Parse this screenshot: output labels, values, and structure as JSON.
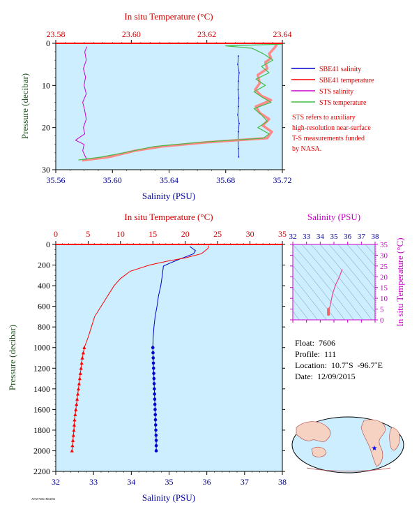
{
  "colors": {
    "salinity_blue": "#0000cc",
    "temperature_red": "#ff0000",
    "sts_salinity": "#cc00cc",
    "sts_temperature": "#44bb44",
    "axis_red": "#cc0000",
    "axis_blue": "#000099",
    "axis_green": "#225522",
    "axis_magenta": "#cc00cc",
    "plot_bg": "#cceeff"
  },
  "legend": {
    "items": [
      {
        "label": "SBE41 salinity",
        "color": "#0000cc"
      },
      {
        "label": "SBE41 temperature",
        "color": "#ff0000"
      },
      {
        "label": "STS salinity",
        "color": "#cc00cc"
      },
      {
        "label": "STS temperature",
        "color": "#44bb44"
      }
    ]
  },
  "note_lines": [
    "STS refers to auxiliary",
    "high-resolution near-surface",
    "T-S measurements funded",
    "by NASA."
  ],
  "float_info": {
    "float": "Float:  7606",
    "profile": "Profile:  111",
    "location": "Location:  10.7˚S  -96.7˚E",
    "date": "Date:  12/09/2015"
  },
  "footer_tiny": "AWW7606.IMS4094",
  "chart_data": [
    {
      "id": "near-surface",
      "type": "line",
      "top_axis_label": "In situ Temperature (°C)",
      "top_ticks": [
        "23.58",
        "23.60",
        "23.62",
        "23.64"
      ],
      "top_lim": [
        23.58,
        23.64
      ],
      "bottom_axis_label": "Salinity (PSU)",
      "bottom_ticks": [
        "35.56",
        "35.60",
        "35.64",
        "35.68",
        "35.72"
      ],
      "bottom_lim": [
        35.56,
        35.72
      ],
      "ylabel": "Pressure (decibar)",
      "y_ticks": [
        "0",
        "10",
        "20",
        "30"
      ],
      "ylim": [
        0,
        30
      ],
      "series": [
        {
          "name": "SBE41 salinity",
          "axis": "bottom",
          "points": [
            [
              35.689,
              3
            ],
            [
              35.6885,
              5
            ],
            [
              35.6895,
              7
            ],
            [
              35.689,
              9
            ],
            [
              35.6888,
              11
            ],
            [
              35.6892,
              13
            ],
            [
              35.689,
              15
            ],
            [
              35.6885,
              17
            ],
            [
              35.6895,
              19
            ],
            [
              35.689,
              21
            ],
            [
              35.6888,
              23
            ],
            [
              35.689,
              25
            ],
            [
              35.6892,
              27
            ]
          ]
        },
        {
          "name": "SBE41 temperature",
          "axis": "top",
          "points": [
            [
              23.6385,
              0.3
            ],
            [
              23.638,
              1.0
            ],
            [
              23.6365,
              2.5
            ],
            [
              23.637,
              3.5
            ],
            [
              23.6355,
              4.5
            ],
            [
              23.636,
              6.0
            ],
            [
              23.6335,
              7.5
            ],
            [
              23.634,
              9.5
            ],
            [
              23.6328,
              11.0
            ],
            [
              23.6345,
              12.5
            ],
            [
              23.637,
              13.5
            ],
            [
              23.633,
              15.0
            ],
            [
              23.634,
              16.5
            ],
            [
              23.6365,
              18.0
            ],
            [
              23.6348,
              19.5
            ],
            [
              23.6372,
              21.0
            ],
            [
              23.636,
              22.5
            ],
            [
              23.62,
              23.5
            ],
            [
              23.608,
              24.5
            ],
            [
              23.601,
              25.5
            ],
            [
              23.594,
              27.0
            ],
            [
              23.587,
              27.8
            ]
          ]
        },
        {
          "name": "STS salinity",
          "axis": "bottom",
          "points": [
            [
              35.582,
              0.8
            ],
            [
              35.5805,
              2.0
            ],
            [
              35.5815,
              4.0
            ],
            [
              35.5795,
              6.0
            ],
            [
              35.581,
              8.0
            ],
            [
              35.58,
              10.0
            ],
            [
              35.5815,
              12.0
            ],
            [
              35.579,
              14.0
            ],
            [
              35.5805,
              16.0
            ],
            [
              35.5815,
              18.0
            ],
            [
              35.5795,
              20.0
            ],
            [
              35.5805,
              21.5
            ],
            [
              35.576,
              22.5
            ],
            [
              35.574,
              23.0
            ],
            [
              35.58,
              24.0
            ],
            [
              35.579,
              25.5
            ],
            [
              35.581,
              27.0
            ],
            [
              35.582,
              27.6
            ]
          ]
        },
        {
          "name": "STS temperature",
          "axis": "top",
          "points": [
            [
              23.64,
              0.2
            ],
            [
              23.625,
              0.6
            ],
            [
              23.632,
              1.2
            ],
            [
              23.635,
              2.5
            ],
            [
              23.6375,
              4.0
            ],
            [
              23.6345,
              5.5
            ],
            [
              23.6365,
              7.0
            ],
            [
              23.633,
              8.5
            ],
            [
              23.6355,
              10.0
            ],
            [
              23.6325,
              11.5
            ],
            [
              23.635,
              13.0
            ],
            [
              23.637,
              14.0
            ],
            [
              23.6325,
              15.5
            ],
            [
              23.6345,
              17.0
            ],
            [
              23.636,
              18.5
            ],
            [
              23.6335,
              20.0
            ],
            [
              23.6365,
              21.5
            ],
            [
              23.635,
              22.5
            ],
            [
              23.618,
              23.5
            ],
            [
              23.606,
              24.5
            ],
            [
              23.599,
              25.8
            ],
            [
              23.592,
              27.0
            ],
            [
              23.586,
              27.7
            ]
          ]
        }
      ]
    },
    {
      "id": "full-profile",
      "type": "line",
      "top_axis_label": "In situ Temperature (°C)",
      "top_ticks": [
        "0",
        "5",
        "10",
        "15",
        "20",
        "25",
        "30",
        "35"
      ],
      "top_lim": [
        0,
        35
      ],
      "bottom_axis_label": "Salinity (PSU)",
      "bottom_ticks": [
        "32",
        "33",
        "34",
        "35",
        "36",
        "37",
        "38"
      ],
      "bottom_lim": [
        32,
        38
      ],
      "ylabel": "Pressure (decibar)",
      "y_ticks": [
        "0",
        "200",
        "400",
        "600",
        "800",
        "1000",
        "1200",
        "1400",
        "1600",
        "1800",
        "2000",
        "2200"
      ],
      "ylim": [
        0,
        2200
      ],
      "series": [
        {
          "name": "SBE41 salinity",
          "axis": "bottom",
          "points": [
            [
              35.55,
              20
            ],
            [
              35.7,
              60
            ],
            [
              35.65,
              90
            ],
            [
              35.3,
              140
            ],
            [
              35.0,
              185
            ],
            [
              34.85,
              210
            ],
            [
              34.82,
              300
            ],
            [
              34.78,
              400
            ],
            [
              34.72,
              500
            ],
            [
              34.68,
              600
            ],
            [
              34.63,
              700
            ],
            [
              34.6,
              800
            ],
            [
              34.58,
              900
            ],
            [
              34.57,
              1000
            ],
            [
              34.58,
              1100
            ],
            [
              34.59,
              1200
            ],
            [
              34.6,
              1300
            ],
            [
              34.61,
              1400
            ],
            [
              34.62,
              1500
            ],
            [
              34.63,
              1600
            ],
            [
              34.64,
              1700
            ],
            [
              34.65,
              1800
            ],
            [
              34.66,
              1900
            ],
            [
              34.66,
              2000
            ]
          ]
        },
        {
          "name": "SBE41 temperature",
          "axis": "top",
          "points": [
            [
              23.6,
              10
            ],
            [
              23.5,
              40
            ],
            [
              22.5,
              90
            ],
            [
              20.0,
              130
            ],
            [
              17.0,
              165
            ],
            [
              14.5,
              200
            ],
            [
              11.5,
              260
            ],
            [
              10.0,
              330
            ],
            [
              9.0,
              400
            ],
            [
              8.0,
              500
            ],
            [
              7.0,
              600
            ],
            [
              6.0,
              700
            ],
            [
              5.5,
              800
            ],
            [
              5.0,
              900
            ],
            [
              4.4,
              1000
            ],
            [
              4.1,
              1100
            ],
            [
              3.9,
              1200
            ],
            [
              3.7,
              1300
            ],
            [
              3.5,
              1400
            ],
            [
              3.3,
              1500
            ],
            [
              3.1,
              1600
            ],
            [
              2.9,
              1700
            ],
            [
              2.8,
              1800
            ],
            [
              2.65,
              1900
            ],
            [
              2.5,
              2000
            ]
          ]
        }
      ],
      "marker_depths": [
        1000,
        1050,
        1100,
        1150,
        1200,
        1250,
        1300,
        1350,
        1400,
        1450,
        1500,
        1550,
        1600,
        1650,
        1700,
        1750,
        1800,
        1850,
        1900,
        1950,
        2000
      ]
    },
    {
      "id": "ts-diagram",
      "type": "scatter",
      "top_axis_label": "Salinity (PSU)",
      "top_ticks": [
        "32",
        "33",
        "34",
        "35",
        "36",
        "37",
        "38"
      ],
      "top_lim": [
        32,
        38
      ],
      "right_axis_label": "In situ Temperature (°C)",
      "right_ticks": [
        "0",
        "5",
        "10",
        "15",
        "20",
        "25",
        "30",
        "35"
      ],
      "right_lim": [
        0,
        35
      ],
      "series": [
        {
          "name": "T-S curve",
          "points": [
            [
              35.6,
              23.5
            ],
            [
              35.4,
              20
            ],
            [
              35.1,
              16
            ],
            [
              34.9,
              12
            ],
            [
              34.8,
              9
            ],
            [
              34.7,
              6
            ],
            [
              34.6,
              4
            ],
            [
              34.6,
              2.5
            ]
          ]
        }
      ]
    }
  ]
}
